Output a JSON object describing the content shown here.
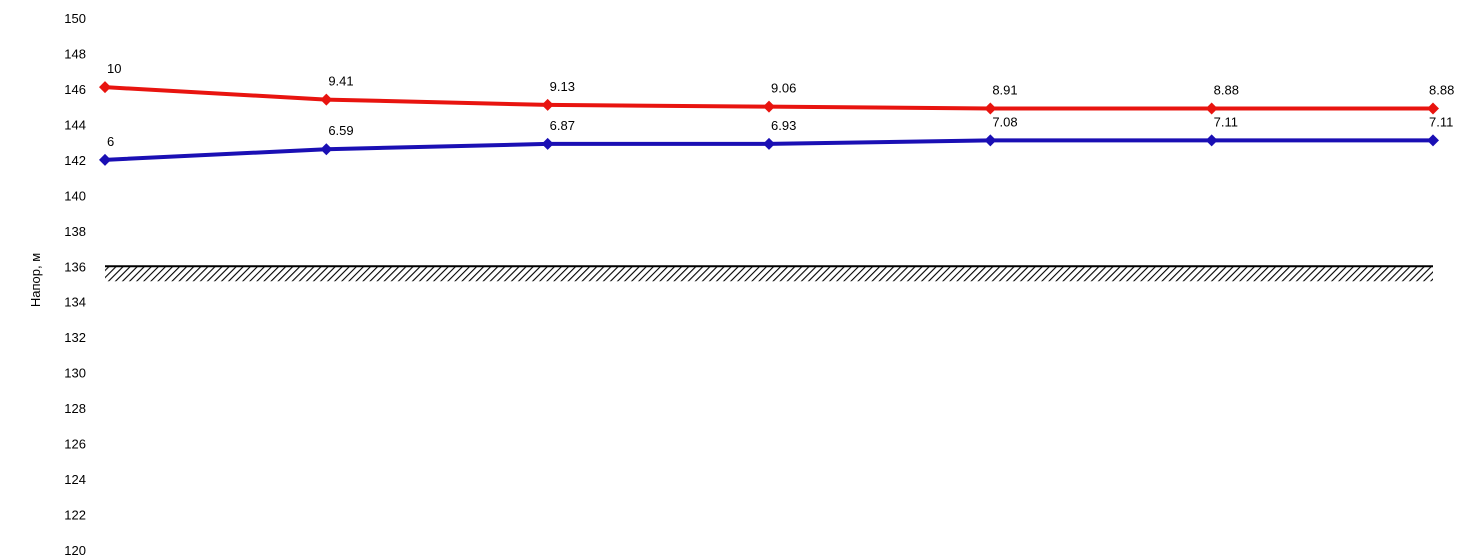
{
  "chart_data": {
    "type": "line",
    "title": "",
    "xlabel": "",
    "ylabel": "Напор, м",
    "ylim": [
      120,
      150
    ],
    "yticks": [
      "150",
      "148",
      "146",
      "144",
      "142",
      "140",
      "138",
      "136",
      "134",
      "132",
      "130",
      "128",
      "126",
      "124",
      "122",
      "120"
    ],
    "grid": false,
    "x": [
      1,
      2,
      3,
      4,
      5,
      6,
      7
    ],
    "series": [
      {
        "color": "#e8140f",
        "values": [
          146.1,
          145.4,
          145.1,
          145.0,
          144.9,
          144.9,
          144.9
        ],
        "labels": [
          "10",
          "9.41",
          "9.13",
          "9.06",
          "8.91",
          "8.88",
          "8.88"
        ]
      },
      {
        "color": "#1a0fb4",
        "values": [
          142.0,
          142.6,
          142.9,
          142.9,
          143.1,
          143.1,
          143.1
        ],
        "labels": [
          "6",
          "6.59",
          "6.87",
          "6.93",
          "7.08",
          "7.11",
          "7.11"
        ]
      }
    ],
    "ground_level": 136
  }
}
